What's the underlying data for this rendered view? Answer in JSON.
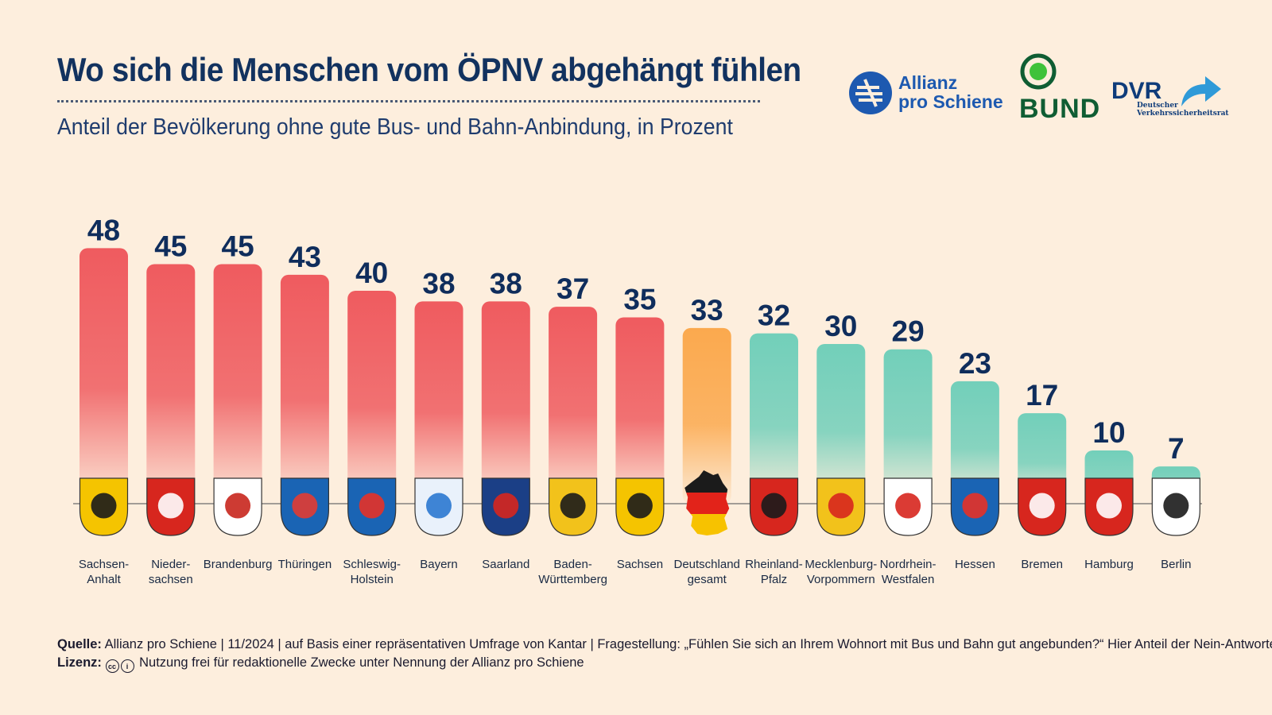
{
  "header": {
    "title": "Wo sich die Menschen vom ÖPNV abgehängt fühlen",
    "subtitle": "Anteil der Bevölkerung ohne gute Bus- und Bahn-Anbindung, in Prozent"
  },
  "logos": {
    "apr_line1": "Allianz",
    "apr_line2": "pro Schiene",
    "bund": "BUND",
    "dvr": "DVR",
    "dvr_sub1": "Deutscher",
    "dvr_sub2": "Verkehrssicherheitsrat"
  },
  "colors": {
    "above_average": "#ef5b5f",
    "national_average": "#fba94e",
    "below_average": "#72cfba",
    "value_label": "#0f2d5c",
    "background": "#fdeedd"
  },
  "chart_data": {
    "type": "bar",
    "title": "Wo sich die Menschen vom ÖPNV abgehängt fühlen",
    "subtitle": "Anteil der Bevölkerung ohne gute Bus- und Bahn-Anbindung, in Prozent",
    "xlabel": "",
    "ylabel": "",
    "ylim": [
      0,
      50
    ],
    "grid": false,
    "categories": [
      [
        "Sachsen-",
        "Anhalt"
      ],
      [
        "Nieder-",
        "sachsen"
      ],
      [
        "Brandenburg"
      ],
      [
        "Thüringen"
      ],
      [
        "Schleswig-",
        "Holstein"
      ],
      [
        "Bayern"
      ],
      [
        "Saarland"
      ],
      [
        "Baden-",
        "Württemberg"
      ],
      [
        "Sachsen"
      ],
      [
        "Deutschland",
        "gesamt"
      ],
      [
        "Rheinland-",
        "Pfalz"
      ],
      [
        "Mecklenburg-",
        "Vorpommern"
      ],
      [
        "Nordrhein-",
        "Westfalen"
      ],
      [
        "Hessen"
      ],
      [
        "Bremen"
      ],
      [
        "Hamburg"
      ],
      [
        "Berlin"
      ]
    ],
    "values": [
      48,
      45,
      45,
      43,
      40,
      38,
      38,
      37,
      35,
      33,
      32,
      30,
      29,
      23,
      17,
      10,
      7
    ],
    "bar_groups": [
      "above",
      "above",
      "above",
      "above",
      "above",
      "above",
      "above",
      "above",
      "above",
      "average",
      "below",
      "below",
      "below",
      "below",
      "below",
      "below",
      "below"
    ],
    "value_labels": [
      "48",
      "45",
      "45",
      "43",
      "40",
      "38",
      "38",
      "37",
      "35",
      "33",
      "32",
      "30",
      "29",
      "23",
      "17",
      "10",
      "7"
    ],
    "icons": [
      "coat-of-arms-sachsen-anhalt-icon",
      "coat-of-arms-niedersachsen-icon",
      "coat-of-arms-brandenburg-icon",
      "coat-of-arms-thueringen-icon",
      "coat-of-arms-schleswig-holstein-icon",
      "coat-of-arms-bayern-icon",
      "coat-of-arms-saarland-icon",
      "coat-of-arms-baden-wuerttemberg-icon",
      "coat-of-arms-sachsen-icon",
      "germany-map-icon",
      "coat-of-arms-rheinland-pfalz-icon",
      "coat-of-arms-mecklenburg-vorpommern-icon",
      "coat-of-arms-nordrhein-westfalen-icon",
      "coat-of-arms-hessen-icon",
      "coat-of-arms-bremen-icon",
      "coat-of-arms-hamburg-icon",
      "coat-of-arms-berlin-icon"
    ]
  },
  "footer": {
    "source_label": "Quelle:",
    "source_text": "Allianz pro Schiene | 11/2024 | auf Basis einer repräsentativen Umfrage von Kantar | Fragestellung: „Fühlen Sie sich an Ihrem Wohnort mit Bus und Bahn gut angebunden?“ Hier Anteil der Nein-Antworten.",
    "license_label": "Lizenz:",
    "license_text": "Nutzung frei für redaktionelle Zwecke unter Nennung der Allianz pro Schiene"
  }
}
